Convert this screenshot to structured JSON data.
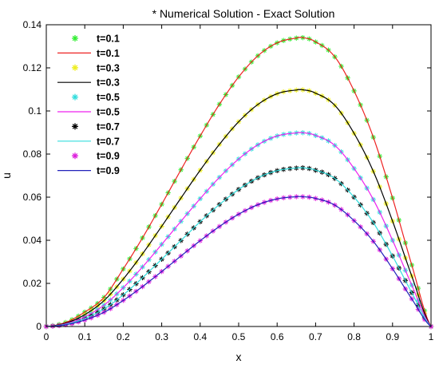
{
  "chart_data": {
    "type": "line",
    "title": "* Numerical Solution   - Exact Solution",
    "xlabel": "x",
    "ylabel": "u",
    "xlim": [
      0,
      1
    ],
    "ylim": [
      0,
      0.14
    ],
    "xticks": [
      "0",
      "0.1",
      "0.2",
      "0.3",
      "0.4",
      "0.5",
      "0.6",
      "0.7",
      "0.8",
      "0.9",
      "1"
    ],
    "yticks": [
      "0",
      "0.02",
      "0.04",
      "0.06",
      "0.08",
      "0.1",
      "0.12",
      "0.14"
    ],
    "grid": false,
    "legend_position": "top-left",
    "x": [
      0,
      0.05,
      0.1,
      0.15,
      0.2,
      0.25,
      0.3,
      0.35,
      0.4,
      0.45,
      0.5,
      0.55,
      0.6,
      0.65,
      0.667,
      0.7,
      0.75,
      0.8,
      0.85,
      0.9,
      0.95,
      1
    ],
    "series": [
      {
        "name": "t=0.1",
        "kind": "markers",
        "color": "#33ee33",
        "values": [
          0,
          0.00185,
          0.0067,
          0.0135,
          0.0267,
          0.0411,
          0.0567,
          0.0727,
          0.0884,
          0.1031,
          0.1158,
          0.1256,
          0.1316,
          0.1338,
          0.134,
          0.132,
          0.1251,
          0.1093,
          0.0878,
          0.0596,
          0.0285,
          0
        ]
      },
      {
        "name": "t=0.1",
        "kind": "line",
        "color": "#ee2222",
        "values": [
          0,
          0.00185,
          0.0067,
          0.0135,
          0.0267,
          0.0411,
          0.0567,
          0.0727,
          0.0884,
          0.1031,
          0.1158,
          0.1256,
          0.1316,
          0.1338,
          0.134,
          0.132,
          0.1251,
          0.1093,
          0.0878,
          0.0596,
          0.0285,
          0
        ]
      },
      {
        "name": "t=0.3",
        "kind": "markers",
        "color": "#eeee22",
        "values": [
          0,
          0.0015,
          0.0055,
          0.012,
          0.022,
          0.0337,
          0.0465,
          0.0596,
          0.0725,
          0.0845,
          0.095,
          0.103,
          0.108,
          0.1097,
          0.1098,
          0.1082,
          0.1026,
          0.0896,
          0.072,
          0.0489,
          0.0234,
          0
        ]
      },
      {
        "name": "t=0.3",
        "kind": "line",
        "color": "#000000",
        "values": [
          0,
          0.0015,
          0.0055,
          0.012,
          0.022,
          0.0337,
          0.0465,
          0.0596,
          0.0725,
          0.0845,
          0.095,
          0.103,
          0.108,
          0.1097,
          0.1098,
          0.1082,
          0.1026,
          0.0896,
          0.072,
          0.0489,
          0.0234,
          0
        ]
      },
      {
        "name": "t=0.5",
        "kind": "markers",
        "color": "#33dddd",
        "values": [
          0,
          0.0012,
          0.0045,
          0.0099,
          0.018,
          0.0276,
          0.0381,
          0.0488,
          0.0593,
          0.0692,
          0.0777,
          0.0843,
          0.0884,
          0.0898,
          0.0899,
          0.0886,
          0.084,
          0.0733,
          0.0589,
          0.04,
          0.0192,
          0
        ]
      },
      {
        "name": "t=0.5",
        "kind": "line",
        "color": "#ee22ee",
        "values": [
          0,
          0.0012,
          0.0045,
          0.0099,
          0.018,
          0.0276,
          0.0381,
          0.0488,
          0.0593,
          0.0692,
          0.0777,
          0.0843,
          0.0884,
          0.0898,
          0.0899,
          0.0886,
          0.084,
          0.0733,
          0.0589,
          0.04,
          0.0192,
          0
        ]
      },
      {
        "name": "t=0.7",
        "kind": "markers",
        "color": "#000000",
        "values": [
          0,
          0.001,
          0.0037,
          0.0081,
          0.0147,
          0.0226,
          0.0312,
          0.0399,
          0.0486,
          0.0566,
          0.0636,
          0.069,
          0.0723,
          0.0735,
          0.0736,
          0.0725,
          0.0687,
          0.06,
          0.0482,
          0.0327,
          0.0157,
          0
        ]
      },
      {
        "name": "t=0.7",
        "kind": "line",
        "color": "#33dddd",
        "values": [
          0,
          0.001,
          0.0037,
          0.0081,
          0.0147,
          0.0226,
          0.0312,
          0.0399,
          0.0486,
          0.0566,
          0.0636,
          0.069,
          0.0723,
          0.0735,
          0.0736,
          0.0725,
          0.0687,
          0.06,
          0.0482,
          0.0327,
          0.0157,
          0
        ]
      },
      {
        "name": "t=0.9",
        "kind": "markers",
        "color": "#dd22dd",
        "values": [
          0,
          0.0008,
          0.003,
          0.0066,
          0.0121,
          0.0185,
          0.0255,
          0.0327,
          0.0398,
          0.0464,
          0.0521,
          0.0565,
          0.0592,
          0.0602,
          0.0602,
          0.0594,
          0.0563,
          0.0491,
          0.0395,
          0.0268,
          0.0128,
          0
        ]
      },
      {
        "name": "t=0.9",
        "kind": "line",
        "color": "#2222bb",
        "values": [
          0,
          0.0008,
          0.003,
          0.0066,
          0.0121,
          0.0185,
          0.0255,
          0.0327,
          0.0398,
          0.0464,
          0.0521,
          0.0565,
          0.0592,
          0.0602,
          0.0602,
          0.0594,
          0.0563,
          0.0491,
          0.0395,
          0.0268,
          0.0128,
          0
        ]
      }
    ]
  }
}
